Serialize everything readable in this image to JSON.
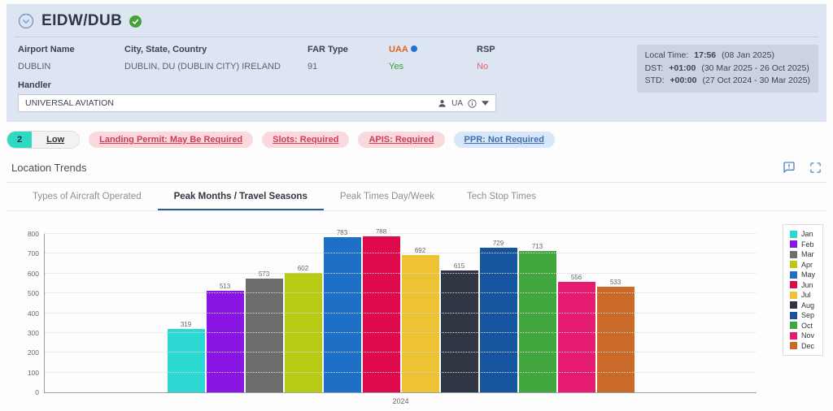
{
  "header": {
    "title": "EIDW/DUB",
    "airport_name_label": "Airport Name",
    "airport_name": "DUBLIN",
    "city_label": "City, State, Country",
    "city": "DUBLIN, DU (DUBLIN CITY) IRELAND",
    "far_label": "FAR Type",
    "far": "91",
    "uaa_label": "UAA",
    "uaa": "Yes",
    "rsp_label": "RSP",
    "rsp": "No",
    "handler_label": "Handler",
    "handler_value": "UNIVERSAL AVIATION",
    "handler_code": "UA",
    "times": [
      {
        "label": "Local Time:",
        "value": "17:56",
        "range": "(08 Jan 2025)"
      },
      {
        "label": "DST:",
        "value": "+01:00",
        "range": "(30 Mar 2025 - 26 Oct 2025)"
      },
      {
        "label": "STD:",
        "value": "+00:00",
        "range": "(27 Oct 2024 - 30 Mar 2025)"
      }
    ]
  },
  "badges": {
    "score": "2",
    "level": "Low",
    "pills": [
      {
        "label": "Landing Permit: May Be Required",
        "type": "red"
      },
      {
        "label": "Slots: Required",
        "type": "red"
      },
      {
        "label": "APIS: Required",
        "type": "red"
      },
      {
        "label": "PPR: Not Required",
        "type": "blue"
      }
    ]
  },
  "section": {
    "title": "Location Trends"
  },
  "tabs": [
    {
      "label": "Types of Aircraft Operated",
      "active": false
    },
    {
      "label": "Peak Months / Travel Seasons",
      "active": true
    },
    {
      "label": "Peak Times Day/Week",
      "active": false
    },
    {
      "label": "Tech Stop Times",
      "active": false
    }
  ],
  "colors": {
    "uaa_yes": "#3ba13a",
    "rsp_no": "#e4606e",
    "uaa_label": "#e0641e",
    "info_dot": "#1e74d0",
    "score_teal": "#2ed9c4",
    "pill_red_bg": "#f9d9de",
    "pill_red_text": "#d23b56",
    "pill_blue_bg": "#d9e6f8",
    "pill_blue_text": "#3a73b4",
    "accent_blue": "#4a85c8",
    "header_bg": "#dde4f2",
    "time_box_bg": "#cbd2e2"
  },
  "chart_data": {
    "type": "bar",
    "title": "",
    "categories": [
      "2024"
    ],
    "series": [
      {
        "name": "Jan",
        "values": [
          319
        ],
        "color": "#2bd9d2"
      },
      {
        "name": "Feb",
        "values": [
          513
        ],
        "color": "#8a16e6"
      },
      {
        "name": "Mar",
        "values": [
          573
        ],
        "color": "#6d6d6d"
      },
      {
        "name": "Apr",
        "values": [
          602
        ],
        "color": "#b7cb15"
      },
      {
        "name": "May",
        "values": [
          783
        ],
        "color": "#1d70c6"
      },
      {
        "name": "Jun",
        "values": [
          788
        ],
        "color": "#df0a4c"
      },
      {
        "name": "Jul",
        "values": [
          692
        ],
        "color": "#edc233"
      },
      {
        "name": "Aug",
        "values": [
          615
        ],
        "color": "#2f3542"
      },
      {
        "name": "Sep",
        "values": [
          729
        ],
        "color": "#15549e"
      },
      {
        "name": "Oct",
        "values": [
          713
        ],
        "color": "#41a63e"
      },
      {
        "name": "Nov",
        "values": [
          556
        ],
        "color": "#e61c72"
      },
      {
        "name": "Dec",
        "values": [
          533
        ],
        "color": "#cb6a28"
      }
    ],
    "xlabel": "",
    "ylabel": "",
    "ylim": [
      0,
      800
    ],
    "yticks": [
      0,
      100,
      200,
      300,
      400,
      500,
      600,
      700,
      800
    ],
    "grid": true,
    "grid_style": "dotted",
    "legend_position": "right",
    "bar_value_labels": true
  }
}
